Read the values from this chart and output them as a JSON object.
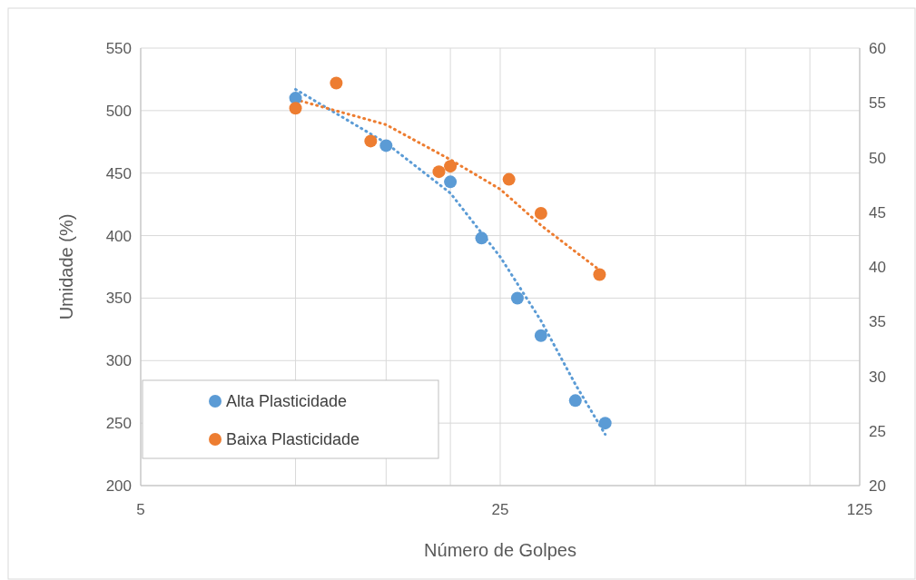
{
  "chart_data": {
    "type": "scatter",
    "xlabel": "Número de Golpes",
    "ylabel": "Umidade (%)",
    "log": "x",
    "xlim": [
      5,
      125
    ],
    "xticks": [
      5,
      {
        "value": 10,
        "label": null
      },
      {
        "value": 15,
        "label": null
      },
      {
        "value": 20,
        "label": null
      },
      25,
      {
        "value": 50,
        "label": null
      },
      {
        "value": 75,
        "label": null
      },
      {
        "value": 100,
        "label": null
      },
      125
    ],
    "ylim": [
      200,
      550
    ],
    "yticks": [
      200,
      250,
      300,
      350,
      400,
      450,
      500,
      550
    ],
    "y2lim": [
      20,
      60
    ],
    "y2ticks": [
      20,
      25,
      30,
      35,
      40,
      45,
      50,
      55,
      60
    ],
    "grid": true,
    "legend": "bottom left",
    "marker": "circle",
    "series": [
      {
        "name": "Alta Plasticidade",
        "color": "#5b9bd5",
        "x": [
          10,
          15,
          20,
          23,
          27,
          30,
          35,
          40
        ],
        "values": [
          510,
          472,
          443,
          398,
          350,
          320,
          268,
          250
        ]
      },
      {
        "name": "Baixa Plasticidade",
        "color": "#ed7d31",
        "axis": "y2",
        "x": [
          10,
          12,
          14,
          19,
          20,
          26,
          30,
          39
        ],
        "values": [
          54.5,
          56.8,
          51.5,
          48.7,
          49.2,
          48.0,
          44.9,
          39.3
        ]
      },
      {
        "type": "line",
        "color": "#5b9bd5",
        "line_style": "dotted",
        "marker": "none",
        "x": [
          10,
          15,
          20,
          25,
          30,
          35,
          40
        ],
        "values": [
          517,
          474,
          434,
          383,
          332,
          281,
          241
        ]
      },
      {
        "type": "line",
        "color": "#ed7d31",
        "line_style": "dotted",
        "marker": "none",
        "axis": "y2",
        "x": [
          10,
          15,
          20,
          25,
          30,
          39
        ],
        "values": [
          55.3,
          53,
          49.8,
          47.1,
          43.8,
          39.7
        ]
      }
    ]
  }
}
